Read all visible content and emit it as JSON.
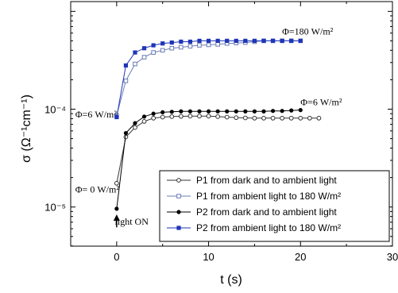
{
  "chart_data": {
    "type": "scatter",
    "xlabel": "t (s)",
    "ylabel": "σ (Ω⁻¹cm⁻¹)",
    "xlim": [
      -5,
      30
    ],
    "ylim_log10": [
      -5.4,
      -2.9
    ],
    "yscale": "log",
    "x_ticks": [
      0,
      10,
      20,
      30
    ],
    "x_tick_labels": [
      "0",
      "10",
      "20",
      "30"
    ],
    "y_ticks": [
      1e-05,
      0.0001
    ],
    "y_tick_labels": [
      "10⁻⁵",
      "10⁻⁴"
    ],
    "grid": false,
    "legend_position": "bottom-right",
    "series": [
      {
        "name": "P1 from dark and to ambient light",
        "color": "#333333",
        "marker": "open-circle",
        "x": [
          0,
          1,
          2,
          3,
          4,
          5,
          6,
          7,
          8,
          9,
          10,
          11,
          12,
          13,
          14,
          15,
          16,
          17,
          18,
          19,
          20,
          21,
          22
        ],
        "y": [
          1.75e-05,
          5.2e-05,
          6.5e-05,
          7.5e-05,
          8.1e-05,
          8.3e-05,
          8.4e-05,
          8.45e-05,
          8.5e-05,
          8.5e-05,
          8.5e-05,
          8.4e-05,
          8.3e-05,
          8.2e-05,
          8.15e-05,
          8.1e-05,
          8.1e-05,
          8.1e-05,
          8.1e-05,
          8.1e-05,
          8.1e-05,
          8.1e-05,
          8.1e-05
        ]
      },
      {
        "name": "P1 from ambient light to 180 W/m²",
        "color": "#6b7bb5",
        "marker": "open-square",
        "x": [
          0,
          1,
          2,
          3,
          4,
          5,
          6,
          7,
          8,
          9,
          10,
          11,
          12,
          13,
          14,
          15,
          16,
          17,
          18,
          19,
          20
        ],
        "y": [
          8.65e-05,
          0.000195,
          0.00029,
          0.00034,
          0.00038,
          0.0004,
          0.00042,
          0.00043,
          0.00044,
          0.00045,
          0.000455,
          0.00046,
          0.00047,
          0.000475,
          0.00048,
          0.00049,
          0.0005,
          0.0005,
          0.0005,
          0.0005,
          0.0005
        ]
      },
      {
        "name": "P2 from dark and to ambient light",
        "color": "#000000",
        "marker": "filled-circle",
        "x": [
          0,
          1,
          2,
          3,
          4,
          5,
          6,
          7,
          8,
          9,
          10,
          11,
          12,
          13,
          14,
          15,
          16,
          17,
          18,
          19,
          20
        ],
        "y": [
          9.6e-06,
          5.7e-05,
          7.2e-05,
          8.4e-05,
          9e-05,
          9.3e-05,
          9.4e-05,
          9.5e-05,
          9.5e-05,
          9.5e-05,
          9.5e-05,
          9.5e-05,
          9.5e-05,
          9.5e-05,
          9.5e-05,
          9.5e-05,
          9.5e-05,
          9.6e-05,
          9.6e-05,
          9.7e-05,
          9.8e-05
        ]
      },
      {
        "name": "P2 from ambient light to 180 W/m²",
        "color": "#1f35b8",
        "marker": "filled-square",
        "x": [
          0,
          1,
          2,
          3,
          4,
          5,
          6,
          7,
          8,
          9,
          10,
          11,
          12,
          13,
          14,
          15,
          16,
          17,
          18,
          19,
          20
        ],
        "y": [
          8.3e-05,
          0.00028,
          0.00038,
          0.00042,
          0.00045,
          0.00047,
          0.00048,
          0.00049,
          0.00049,
          0.0005,
          0.0005,
          0.0005,
          0.0005,
          0.0005,
          0.0005,
          0.0005,
          0.0005,
          0.0005,
          0.0005,
          0.0005,
          0.0005
        ]
      }
    ],
    "annotations": [
      {
        "text": "Φ=180 W/m²",
        "x": 18,
        "y": 0.00058
      },
      {
        "text": "Φ=6 W/m²",
        "x": 20,
        "y": 0.00011
      },
      {
        "text": "Φ=6 W/m²",
        "x": -4.5,
        "y": 8.2e-05
      },
      {
        "text": "Φ= 0 W/m²",
        "x": -4.5,
        "y": 1.4e-05
      },
      {
        "text": "light ON",
        "x": -0.2,
        "y": 6.6e-06
      }
    ],
    "arrow": {
      "x": 0,
      "y_from": 6.2e-06,
      "y_to": 8.4e-06
    }
  }
}
